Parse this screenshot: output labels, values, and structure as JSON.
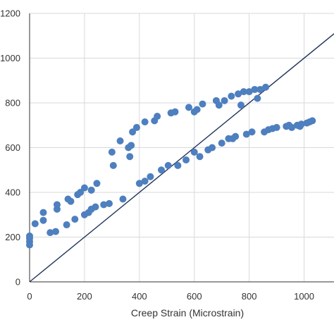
{
  "chart_data": {
    "type": "scatter",
    "title": "",
    "xlabel": "Creep Strain (Microstrain)",
    "ylabel": "",
    "xlim": [
      0,
      1150
    ],
    "ylim": [
      0,
      1200
    ],
    "xticks": [
      0,
      200,
      400,
      600,
      800,
      1000
    ],
    "yticks": [
      0,
      200,
      400,
      600,
      800,
      1000,
      1200
    ],
    "grid": true,
    "legend": "none",
    "colors": {
      "points": "#4e7fbf",
      "line": "#1f3357",
      "grid": "#d9d9d9",
      "axis": "#333333"
    },
    "reference_line": {
      "x": [
        0,
        1150
      ],
      "y": [
        0,
        1150
      ]
    },
    "series": [
      {
        "values": [
          [
            0,
            165
          ],
          [
            0,
            180
          ],
          [
            0,
            195
          ],
          [
            0,
            205
          ],
          [
            20,
            260
          ],
          [
            50,
            275
          ],
          [
            50,
            310
          ],
          [
            75,
            220
          ],
          [
            95,
            225
          ],
          [
            100,
            325
          ],
          [
            100,
            345
          ],
          [
            135,
            255
          ],
          [
            140,
            370
          ],
          [
            150,
            360
          ],
          [
            165,
            280
          ],
          [
            175,
            390
          ],
          [
            185,
            400
          ],
          [
            200,
            300
          ],
          [
            200,
            420
          ],
          [
            215,
            310
          ],
          [
            225,
            325
          ],
          [
            225,
            410
          ],
          [
            240,
            335
          ],
          [
            245,
            440
          ],
          [
            270,
            345
          ],
          [
            290,
            350
          ],
          [
            300,
            580
          ],
          [
            305,
            520
          ],
          [
            330,
            630
          ],
          [
            340,
            370
          ],
          [
            360,
            600
          ],
          [
            365,
            560
          ],
          [
            370,
            610
          ],
          [
            375,
            670
          ],
          [
            390,
            690
          ],
          [
            400,
            440
          ],
          [
            420,
            450
          ],
          [
            420,
            715
          ],
          [
            440,
            470
          ],
          [
            455,
            720
          ],
          [
            465,
            740
          ],
          [
            480,
            500
          ],
          [
            505,
            520
          ],
          [
            515,
            755
          ],
          [
            530,
            760
          ],
          [
            540,
            520
          ],
          [
            570,
            545
          ],
          [
            580,
            780
          ],
          [
            600,
            580
          ],
          [
            600,
            760
          ],
          [
            610,
            770
          ],
          [
            620,
            560
          ],
          [
            630,
            795
          ],
          [
            650,
            590
          ],
          [
            665,
            600
          ],
          [
            680,
            810
          ],
          [
            690,
            790
          ],
          [
            700,
            620
          ],
          [
            710,
            810
          ],
          [
            725,
            640
          ],
          [
            735,
            830
          ],
          [
            740,
            640
          ],
          [
            750,
            650
          ],
          [
            760,
            840
          ],
          [
            770,
            790
          ],
          [
            780,
            850
          ],
          [
            790,
            660
          ],
          [
            800,
            850
          ],
          [
            810,
            670
          ],
          [
            820,
            860
          ],
          [
            830,
            820
          ],
          [
            840,
            860
          ],
          [
            855,
            670
          ],
          [
            860,
            870
          ],
          [
            870,
            680
          ],
          [
            885,
            685
          ],
          [
            900,
            690
          ],
          [
            935,
            695
          ],
          [
            945,
            700
          ],
          [
            955,
            690
          ],
          [
            975,
            700
          ],
          [
            985,
            695
          ],
          [
            990,
            705
          ],
          [
            1010,
            710
          ],
          [
            1020,
            715
          ],
          [
            1030,
            720
          ]
        ]
      }
    ]
  }
}
